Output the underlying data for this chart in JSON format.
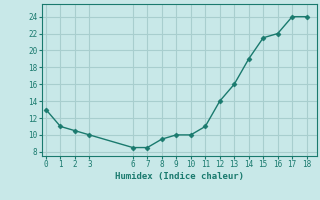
{
  "x": [
    0,
    1,
    2,
    3,
    6,
    7,
    8,
    9,
    10,
    11,
    12,
    13,
    14,
    15,
    16,
    17,
    18
  ],
  "y": [
    13,
    11,
    10.5,
    10,
    8.5,
    8.5,
    9.5,
    10,
    10,
    11,
    14,
    16,
    19,
    21.5,
    22,
    24,
    24
  ],
  "xlabel": "Humidex (Indice chaleur)",
  "xlim": [
    -0.3,
    18.7
  ],
  "ylim": [
    7.5,
    25.5
  ],
  "xticks": [
    0,
    1,
    2,
    3,
    6,
    7,
    8,
    9,
    10,
    11,
    12,
    13,
    14,
    15,
    16,
    17,
    18
  ],
  "yticks": [
    8,
    10,
    12,
    14,
    16,
    18,
    20,
    22,
    24
  ],
  "line_color": "#1a7a6e",
  "bg_color": "#c8e8e8",
  "grid_color": "#a8cece"
}
